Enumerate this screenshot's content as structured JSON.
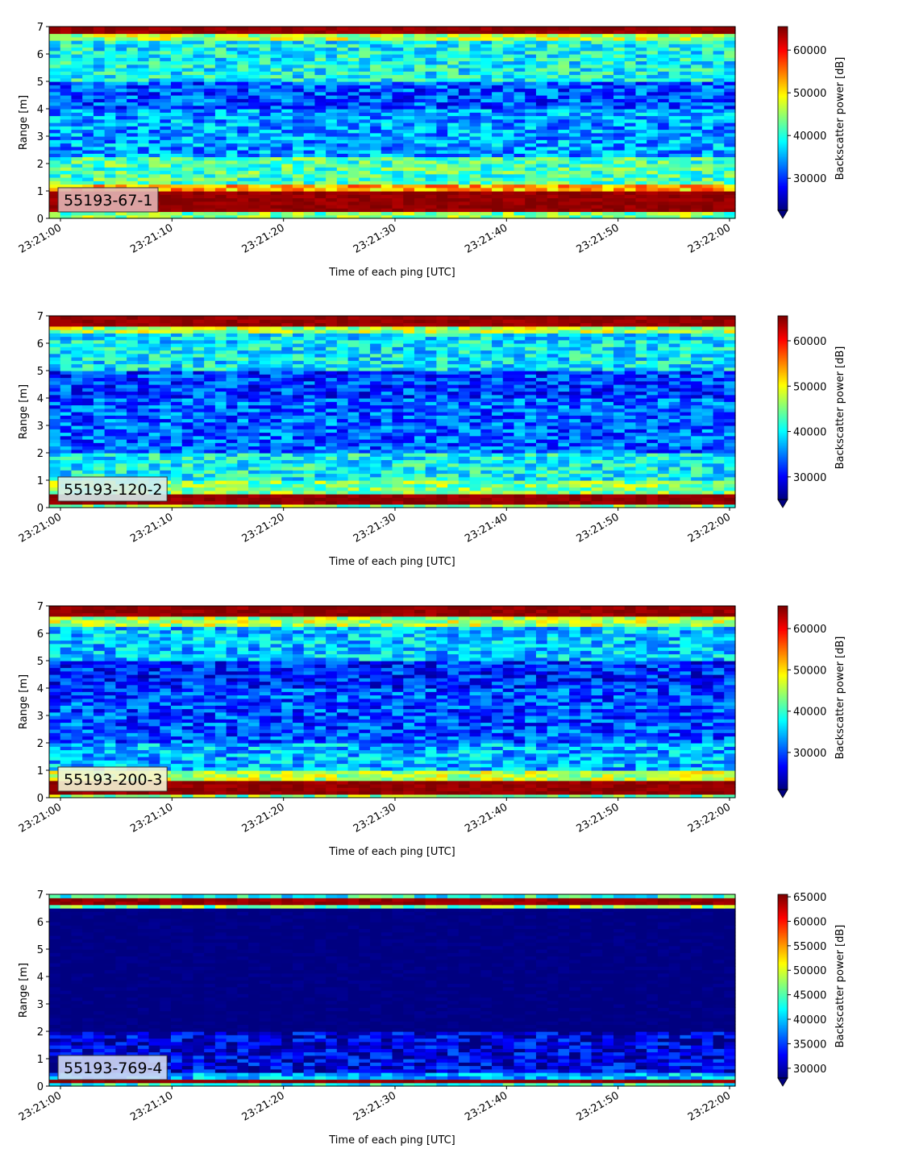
{
  "chart_data": [
    {
      "type": "heatmap",
      "title": "",
      "label": "55193-67-1",
      "label_bg": "#e3b4b4",
      "xlabel": "Time of each ping [UTC]",
      "ylabel": "Range [m]",
      "x_ticks": [
        "23:21:00",
        "23:21:10",
        "23:21:20",
        "23:21:30",
        "23:21:40",
        "23:21:50",
        "23:22:00"
      ],
      "y_ticks": [
        "0",
        "1",
        "2",
        "3",
        "4",
        "5",
        "6",
        "7"
      ],
      "ylim": [
        0,
        7
      ],
      "colorbar": {
        "label": "Backscatter power [dB]",
        "ticks": [
          "30000",
          "40000",
          "50000",
          "60000"
        ],
        "tick_values": [
          30000,
          40000,
          50000,
          60000
        ],
        "range": [
          22500,
          65500
        ],
        "colormap": "jet",
        "extend": "min"
      },
      "bands": [
        {
          "range": [
            6.7,
            7.0
          ],
          "level": 0.98
        },
        {
          "range": [
            6.5,
            6.7
          ],
          "level": 0.55
        },
        {
          "range": [
            5.0,
            6.5
          ],
          "level": 0.38
        },
        {
          "range": [
            4.0,
            5.0
          ],
          "level": 0.2
        },
        {
          "range": [
            2.2,
            4.0
          ],
          "level": 0.28
        },
        {
          "range": [
            1.2,
            2.2
          ],
          "level": 0.45
        },
        {
          "range": [
            1.0,
            1.2
          ],
          "level": 0.7
        },
        {
          "range": [
            0.2,
            1.0
          ],
          "level": 0.98
        },
        {
          "range": [
            0.0,
            0.2
          ],
          "level": 0.5
        }
      ]
    },
    {
      "type": "heatmap",
      "title": "",
      "label": "55193-120-2",
      "label_bg": "#d6ecec",
      "xlabel": "Time of each ping [UTC]",
      "ylabel": "Range [m]",
      "x_ticks": [
        "23:21:00",
        "23:21:10",
        "23:21:20",
        "23:21:30",
        "23:21:40",
        "23:21:50",
        "23:22:00"
      ],
      "y_ticks": [
        "0",
        "1",
        "2",
        "3",
        "4",
        "5",
        "6",
        "7"
      ],
      "ylim": [
        0,
        7
      ],
      "colorbar": {
        "label": "Backscatter power [dB]",
        "ticks": [
          "30000",
          "40000",
          "50000",
          "60000"
        ],
        "tick_values": [
          30000,
          40000,
          50000,
          60000
        ],
        "range": [
          25000,
          65500
        ],
        "colormap": "jet",
        "extend": "min"
      },
      "bands": [
        {
          "range": [
            6.6,
            7.0
          ],
          "level": 0.98
        },
        {
          "range": [
            6.4,
            6.6
          ],
          "level": 0.55
        },
        {
          "range": [
            5.0,
            6.4
          ],
          "level": 0.36
        },
        {
          "range": [
            4.0,
            5.0
          ],
          "level": 0.18
        },
        {
          "range": [
            2.0,
            4.0
          ],
          "level": 0.22
        },
        {
          "range": [
            1.0,
            2.0
          ],
          "level": 0.38
        },
        {
          "range": [
            0.5,
            1.0
          ],
          "level": 0.5
        },
        {
          "range": [
            0.1,
            0.5
          ],
          "level": 0.98
        },
        {
          "range": [
            0.0,
            0.1
          ],
          "level": 0.5
        }
      ]
    },
    {
      "type": "heatmap",
      "title": "",
      "label": "55193-200-3",
      "label_bg": "#f4f4d4",
      "xlabel": "Time of each ping [UTC]",
      "ylabel": "Range [m]",
      "x_ticks": [
        "23:21:00",
        "23:21:10",
        "23:21:20",
        "23:21:30",
        "23:21:40",
        "23:21:50",
        "23:22:00"
      ],
      "y_ticks": [
        "0",
        "1",
        "2",
        "3",
        "4",
        "5",
        "6",
        "7"
      ],
      "ylim": [
        0,
        7
      ],
      "colorbar": {
        "label": "Backscatter power [dB]",
        "ticks": [
          "30000",
          "40000",
          "50000",
          "60000"
        ],
        "tick_values": [
          30000,
          40000,
          50000,
          60000
        ],
        "range": [
          21000,
          65500
        ],
        "colormap": "jet",
        "extend": "min"
      },
      "bands": [
        {
          "range": [
            6.6,
            7.0
          ],
          "level": 0.98
        },
        {
          "range": [
            6.3,
            6.6
          ],
          "level": 0.55
        },
        {
          "range": [
            5.0,
            6.3
          ],
          "level": 0.32
        },
        {
          "range": [
            4.0,
            5.0
          ],
          "level": 0.16
        },
        {
          "range": [
            2.0,
            4.0
          ],
          "level": 0.2
        },
        {
          "range": [
            1.0,
            2.0
          ],
          "level": 0.3
        },
        {
          "range": [
            0.6,
            1.0
          ],
          "level": 0.55
        },
        {
          "range": [
            0.1,
            0.6
          ],
          "level": 0.98
        },
        {
          "range": [
            0.0,
            0.1
          ],
          "level": 0.5
        }
      ]
    },
    {
      "type": "heatmap",
      "title": "",
      "label": "55193-769-4",
      "label_bg": "#cfd8f4",
      "xlabel": "Time of each ping [UTC]",
      "ylabel": "Range [m]",
      "x_ticks": [
        "23:21:00",
        "23:21:10",
        "23:21:20",
        "23:21:30",
        "23:21:40",
        "23:21:50",
        "23:22:00"
      ],
      "y_ticks": [
        "0",
        "1",
        "2",
        "3",
        "4",
        "5",
        "6",
        "7"
      ],
      "ylim": [
        0,
        7
      ],
      "colorbar": {
        "label": "Backscatter power [dB]",
        "ticks": [
          "30000",
          "35000",
          "40000",
          "45000",
          "50000",
          "55000",
          "60000",
          "65000"
        ],
        "tick_values": [
          30000,
          35000,
          40000,
          45000,
          50000,
          55000,
          60000,
          65000
        ],
        "range": [
          28000,
          65500
        ],
        "colormap": "jet",
        "extend": "min"
      },
      "bands": [
        {
          "range": [
            6.85,
            7.0
          ],
          "level": 0.4
        },
        {
          "range": [
            6.6,
            6.85
          ],
          "level": 0.98
        },
        {
          "range": [
            6.5,
            6.6
          ],
          "level": 0.5
        },
        {
          "range": [
            2.0,
            6.5
          ],
          "level": 0.0
        },
        {
          "range": [
            0.5,
            2.0
          ],
          "level": 0.1
        },
        {
          "range": [
            0.3,
            0.5
          ],
          "level": 0.3
        },
        {
          "range": [
            0.15,
            0.3
          ],
          "level": 0.98
        },
        {
          "range": [
            0.0,
            0.15
          ],
          "level": 0.4
        }
      ]
    }
  ]
}
